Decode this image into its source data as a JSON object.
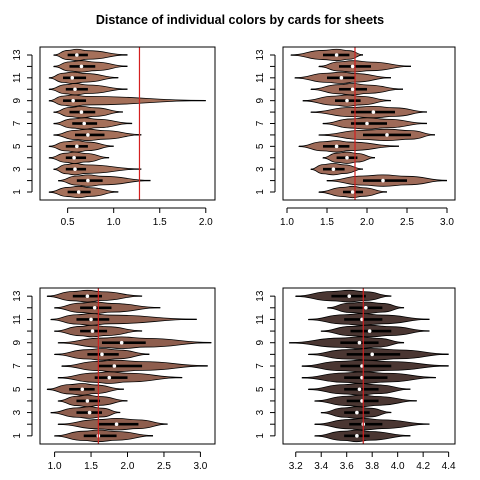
{
  "title": "Distance of individual colors by cards for sheets",
  "chart_data": [
    {
      "type": "violin",
      "panel": "top-left",
      "fill": "#a5705a",
      "xlim": [
        0.2,
        2.1
      ],
      "xticks": [
        0.5,
        1.0,
        1.5,
        2.0
      ],
      "xtick_labels": [
        "0.5",
        "1.0",
        "1.5",
        "2.0"
      ],
      "ylim": [
        0.3,
        13.7
      ],
      "yticks": [
        1,
        3,
        5,
        7,
        9,
        11,
        13
      ],
      "ref_line": 1.28,
      "categories": [
        "1",
        "2",
        "3",
        "4",
        "5",
        "6",
        "7",
        "8",
        "9",
        "10",
        "11",
        "12",
        "13"
      ],
      "violins": [
        {
          "min": 0.3,
          "q1": 0.5,
          "median": 0.62,
          "q3": 0.75,
          "max": 1.05
        },
        {
          "min": 0.4,
          "q1": 0.6,
          "median": 0.72,
          "q3": 0.88,
          "max": 1.4
        },
        {
          "min": 0.35,
          "q1": 0.48,
          "median": 0.58,
          "q3": 0.7,
          "max": 1.3
        },
        {
          "min": 0.3,
          "q1": 0.48,
          "median": 0.57,
          "q3": 0.7,
          "max": 0.95
        },
        {
          "min": 0.3,
          "q1": 0.48,
          "median": 0.6,
          "q3": 0.72,
          "max": 1.0
        },
        {
          "min": 0.35,
          "q1": 0.58,
          "median": 0.72,
          "q3": 0.9,
          "max": 1.3
        },
        {
          "min": 0.35,
          "q1": 0.55,
          "median": 0.68,
          "q3": 0.82,
          "max": 1.2
        },
        {
          "min": 0.35,
          "q1": 0.52,
          "median": 0.65,
          "q3": 0.8,
          "max": 1.1
        },
        {
          "min": 0.3,
          "q1": 0.45,
          "median": 0.56,
          "q3": 0.7,
          "max": 2.0
        },
        {
          "min": 0.3,
          "q1": 0.48,
          "median": 0.58,
          "q3": 0.72,
          "max": 1.15
        },
        {
          "min": 0.3,
          "q1": 0.45,
          "median": 0.55,
          "q3": 0.7,
          "max": 1.05
        },
        {
          "min": 0.35,
          "q1": 0.52,
          "median": 0.65,
          "q3": 0.8,
          "max": 1.15
        },
        {
          "min": 0.35,
          "q1": 0.5,
          "median": 0.6,
          "q3": 0.72,
          "max": 1.15
        }
      ]
    },
    {
      "type": "violin",
      "panel": "top-right",
      "fill": "#9e6a58",
      "xlim": [
        0.95,
        3.1
      ],
      "xticks": [
        1.0,
        1.5,
        2.0,
        2.5,
        3.0
      ],
      "xtick_labels": [
        "1.0",
        "1.5",
        "2.0",
        "2.5",
        "3.0"
      ],
      "ylim": [
        0.3,
        13.7
      ],
      "yticks": [
        1,
        3,
        5,
        7,
        9,
        11,
        13
      ],
      "ref_line": 1.85,
      "categories": [
        "1",
        "2",
        "3",
        "4",
        "5",
        "6",
        "7",
        "8",
        "9",
        "10",
        "11",
        "12",
        "13"
      ],
      "violins": [
        {
          "min": 1.4,
          "q1": 1.7,
          "median": 1.82,
          "q3": 1.95,
          "max": 2.25
        },
        {
          "min": 1.5,
          "q1": 1.95,
          "median": 2.2,
          "q3": 2.5,
          "max": 3.0
        },
        {
          "min": 1.3,
          "q1": 1.45,
          "median": 1.58,
          "q3": 1.72,
          "max": 1.95
        },
        {
          "min": 1.45,
          "q1": 1.62,
          "median": 1.75,
          "q3": 1.88,
          "max": 2.1
        },
        {
          "min": 1.15,
          "q1": 1.45,
          "median": 1.62,
          "q3": 1.78,
          "max": 2.4
        },
        {
          "min": 1.4,
          "q1": 1.95,
          "median": 2.25,
          "q3": 2.55,
          "max": 2.85
        },
        {
          "min": 1.45,
          "q1": 1.8,
          "median": 2.0,
          "q3": 2.25,
          "max": 2.75
        },
        {
          "min": 1.3,
          "q1": 1.8,
          "median": 2.08,
          "q3": 2.35,
          "max": 2.75
        },
        {
          "min": 1.2,
          "q1": 1.6,
          "median": 1.75,
          "q3": 1.92,
          "max": 2.3
        },
        {
          "min": 1.3,
          "q1": 1.65,
          "median": 1.82,
          "q3": 2.0,
          "max": 2.45
        },
        {
          "min": 1.1,
          "q1": 1.5,
          "median": 1.68,
          "q3": 1.85,
          "max": 2.3
        },
        {
          "min": 1.4,
          "q1": 1.65,
          "median": 1.82,
          "q3": 2.05,
          "max": 2.55
        },
        {
          "min": 1.05,
          "q1": 1.45,
          "median": 1.62,
          "q3": 1.78,
          "max": 1.95
        }
      ]
    },
    {
      "type": "violin",
      "panel": "bottom-left",
      "fill": "#8e5e4e",
      "xlim": [
        0.8,
        3.2
      ],
      "xticks": [
        1.0,
        1.5,
        2.0,
        2.5,
        3.0
      ],
      "xtick_labels": [
        "1.0",
        "1.5",
        "2.0",
        "2.5",
        "3.0"
      ],
      "ylim": [
        0.3,
        13.7
      ],
      "yticks": [
        1,
        3,
        5,
        7,
        9,
        11,
        13
      ],
      "ref_line": 1.6,
      "categories": [
        "1",
        "2",
        "3",
        "4",
        "5",
        "6",
        "7",
        "8",
        "9",
        "10",
        "11",
        "12",
        "13"
      ],
      "violins": [
        {
          "min": 1.0,
          "q1": 1.4,
          "median": 1.6,
          "q3": 1.85,
          "max": 2.35
        },
        {
          "min": 1.05,
          "q1": 1.6,
          "median": 1.85,
          "q3": 2.15,
          "max": 2.55
        },
        {
          "min": 0.95,
          "q1": 1.3,
          "median": 1.48,
          "q3": 1.65,
          "max": 1.9
        },
        {
          "min": 1.05,
          "q1": 1.3,
          "median": 1.45,
          "q3": 1.62,
          "max": 2.0
        },
        {
          "min": 0.9,
          "q1": 1.2,
          "median": 1.38,
          "q3": 1.55,
          "max": 1.95
        },
        {
          "min": 1.05,
          "q1": 1.55,
          "median": 1.75,
          "q3": 2.0,
          "max": 2.75
        },
        {
          "min": 1.1,
          "q1": 1.6,
          "median": 1.82,
          "q3": 2.2,
          "max": 3.1
        },
        {
          "min": 1.0,
          "q1": 1.45,
          "median": 1.65,
          "q3": 1.88,
          "max": 2.3
        },
        {
          "min": 1.05,
          "q1": 1.65,
          "median": 1.92,
          "q3": 2.25,
          "max": 3.15
        },
        {
          "min": 1.0,
          "q1": 1.35,
          "median": 1.52,
          "q3": 1.72,
          "max": 2.2
        },
        {
          "min": 0.95,
          "q1": 1.3,
          "median": 1.5,
          "q3": 1.75,
          "max": 2.95
        },
        {
          "min": 1.0,
          "q1": 1.35,
          "median": 1.55,
          "q3": 1.78,
          "max": 2.45
        },
        {
          "min": 0.9,
          "q1": 1.25,
          "median": 1.45,
          "q3": 1.65,
          "max": 2.2
        }
      ]
    },
    {
      "type": "violin",
      "panel": "bottom-right",
      "fill": "#4a3632",
      "xlim": [
        3.1,
        4.45
      ],
      "xticks": [
        3.2,
        3.4,
        3.6,
        3.8,
        4.0,
        4.2,
        4.4
      ],
      "xtick_labels": [
        "3.2",
        "3.4",
        "3.6",
        "3.8",
        "4.0",
        "4.2",
        "4.4"
      ],
      "ylim": [
        0.3,
        13.7
      ],
      "yticks": [
        1,
        3,
        5,
        7,
        9,
        11,
        13
      ],
      "ref_line": 3.73,
      "categories": [
        "1",
        "2",
        "3",
        "4",
        "5",
        "6",
        "7",
        "8",
        "9",
        "10",
        "11",
        "12",
        "13"
      ],
      "violins": [
        {
          "min": 3.35,
          "q1": 3.58,
          "median": 3.68,
          "q3": 3.78,
          "max": 4.1
        },
        {
          "min": 3.35,
          "q1": 3.62,
          "median": 3.73,
          "q3": 3.88,
          "max": 4.25
        },
        {
          "min": 3.4,
          "q1": 3.58,
          "median": 3.68,
          "q3": 3.78,
          "max": 3.95
        },
        {
          "min": 3.35,
          "q1": 3.6,
          "median": 3.72,
          "q3": 3.85,
          "max": 4.15
        },
        {
          "min": 3.3,
          "q1": 3.58,
          "median": 3.7,
          "q3": 3.85,
          "max": 4.1
        },
        {
          "min": 3.25,
          "q1": 3.58,
          "median": 3.72,
          "q3": 3.92,
          "max": 4.3
        },
        {
          "min": 3.25,
          "q1": 3.55,
          "median": 3.72,
          "q3": 3.95,
          "max": 4.4
        },
        {
          "min": 3.3,
          "q1": 3.6,
          "median": 3.8,
          "q3": 4.02,
          "max": 4.4
        },
        {
          "min": 3.15,
          "q1": 3.55,
          "median": 3.7,
          "q3": 3.85,
          "max": 4.05
        },
        {
          "min": 3.4,
          "q1": 3.63,
          "median": 3.78,
          "q3": 3.95,
          "max": 4.25
        },
        {
          "min": 3.3,
          "q1": 3.58,
          "median": 3.72,
          "q3": 3.88,
          "max": 4.25
        },
        {
          "min": 3.45,
          "q1": 3.62,
          "median": 3.75,
          "q3": 3.88,
          "max": 4.05
        },
        {
          "min": 3.2,
          "q1": 3.48,
          "median": 3.62,
          "q3": 3.75,
          "max": 3.95
        }
      ]
    }
  ]
}
